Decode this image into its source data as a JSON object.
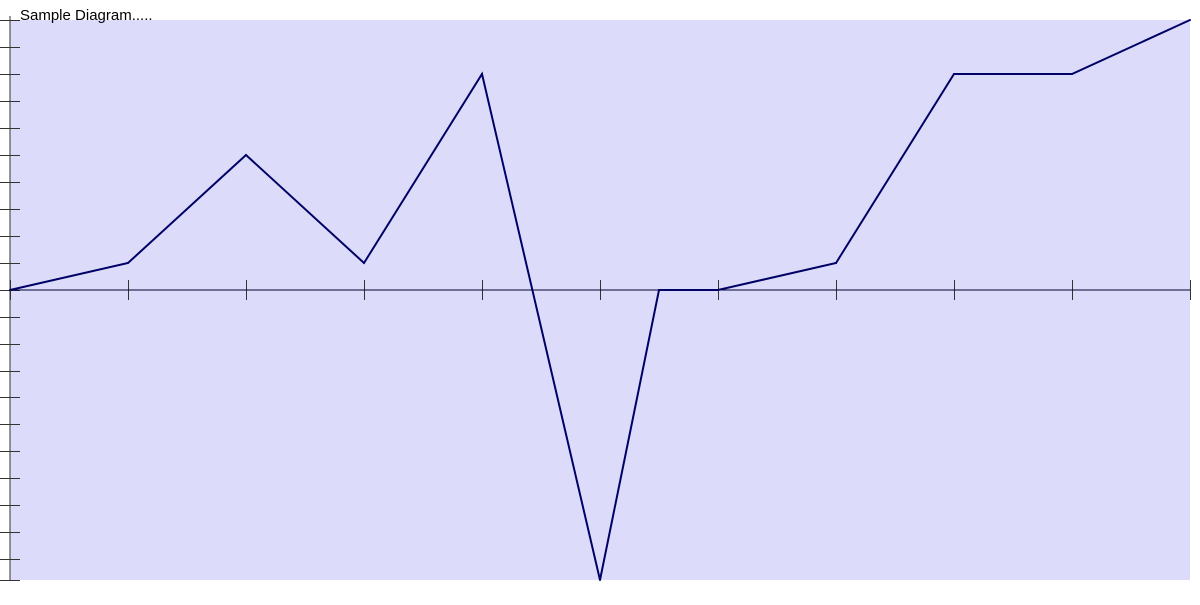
{
  "chart_data": {
    "type": "line",
    "title": "Sample Diagram.....",
    "xlabel": "",
    "ylabel": "",
    "x": [
      0,
      1,
      2,
      3,
      4,
      5,
      5.5,
      6,
      7,
      8,
      9,
      10
    ],
    "xlim": [
      0,
      10
    ],
    "ylim": [
      -54,
      50
    ],
    "y_tick_step": 5,
    "series": [
      {
        "values": [
          0,
          5,
          25,
          5,
          40,
          -54,
          0,
          0,
          5,
          40,
          40,
          50
        ]
      }
    ],
    "grid": false,
    "legend": "none"
  },
  "colors": {
    "plot_background": "#dcdcfa",
    "series_line": "#000066",
    "axis": "#000033",
    "ticks": "#333333"
  }
}
